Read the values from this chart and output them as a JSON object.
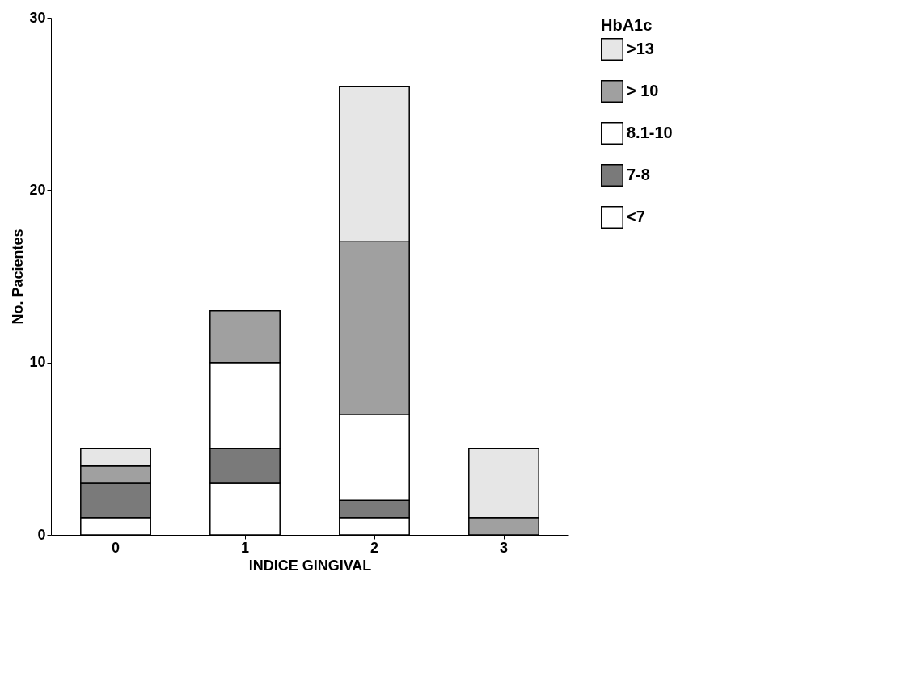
{
  "chart_data": {
    "type": "bar",
    "xlabel": "INDICE GINGIVAL",
    "ylabel": "No. Pacientes",
    "legend_title": "HbA1c",
    "categories": [
      "0",
      "1",
      "2",
      "3"
    ],
    "stacked": true,
    "ylim": [
      0,
      30
    ],
    "yticks": [
      0,
      10,
      20,
      30
    ],
    "grid": false,
    "legend": "right",
    "series": [
      {
        "name": "<7",
        "color": "#ffffff",
        "values": [
          1,
          3,
          1,
          0
        ]
      },
      {
        "name": "7-8",
        "color": "#7a7a7a",
        "values": [
          2,
          2,
          1,
          0
        ]
      },
      {
        "name": "8.1-10",
        "color": "#ffffff",
        "values": [
          0,
          5,
          5,
          0
        ]
      },
      {
        "name": "> 10",
        "color": "#a0a0a0",
        "values": [
          1,
          3,
          10,
          1
        ]
      },
      {
        "name": ">13",
        "color": "#e6e6e6",
        "values": [
          1,
          0,
          9,
          4
        ]
      }
    ]
  }
}
